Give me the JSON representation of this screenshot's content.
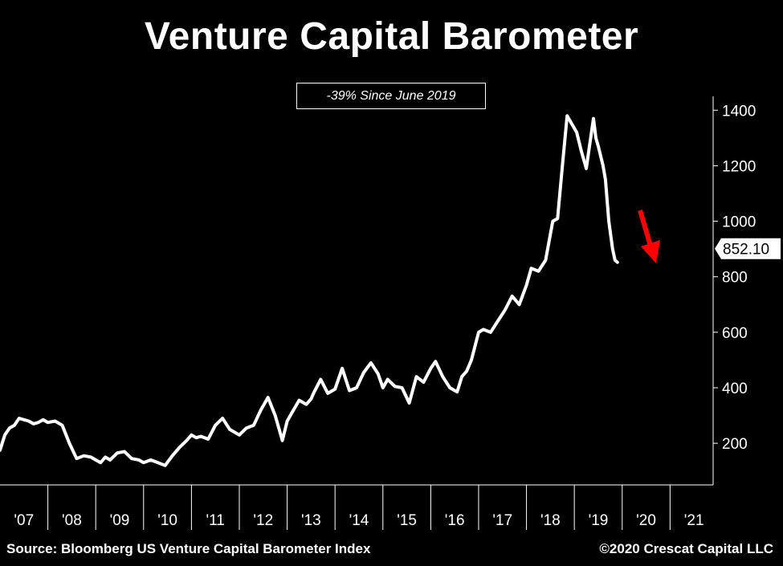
{
  "title": "Venture Capital Barometer",
  "annotation": "-39% Since June 2019",
  "source": "Source: Bloomberg US Venture Capital Barometer Index",
  "copyright": "©2020 Crescat Capital LLC",
  "colors": {
    "background": "#000000",
    "line": "#ffffff",
    "arrow": "#ff0000"
  },
  "chart_data": {
    "type": "line",
    "title": "Venture Capital Barometer",
    "xlabel": "",
    "ylabel": "",
    "ylim": [
      50,
      1450
    ],
    "xlim": [
      2007.0,
      2021.9
    ],
    "yticks": [
      200,
      400,
      600,
      800,
      1000,
      1200,
      1400
    ],
    "x_tick_labels": [
      "'07",
      "'08",
      "'09",
      "'10",
      "'11",
      "'12",
      "'13",
      "'14",
      "'15",
      "'16",
      "'17",
      "'18",
      "'19",
      "'20",
      "'21"
    ],
    "y_axis_position": "right",
    "grid": false,
    "last_value_label": "852.10",
    "series": [
      {
        "x": [
          2007.0,
          2007.1,
          2007.2,
          2007.3,
          2007.4,
          2007.5,
          2007.6,
          2007.7,
          2007.8,
          2007.9,
          2008.0,
          2008.15,
          2008.3,
          2008.45,
          2008.6,
          2008.75,
          2008.9,
          2009.0,
          2009.1,
          2009.2,
          2009.3,
          2009.45,
          2009.6,
          2009.75,
          2009.9,
          2010.0,
          2010.15,
          2010.3,
          2010.45,
          2010.6,
          2010.75,
          2010.9,
          2011.0,
          2011.1,
          2011.2,
          2011.35,
          2011.5,
          2011.65,
          2011.8,
          2012.0,
          2012.15,
          2012.3,
          2012.45,
          2012.6,
          2012.75,
          2012.9,
          2013.0,
          2013.1,
          2013.25,
          2013.4,
          2013.5,
          2013.55,
          2013.7,
          2013.85,
          2014.0,
          2014.15,
          2014.3,
          2014.45,
          2014.6,
          2014.75,
          2014.9,
          2015.0,
          2015.1,
          2015.25,
          2015.4,
          2015.55,
          2015.7,
          2015.85,
          2016.0,
          2016.1,
          2016.25,
          2016.4,
          2016.55,
          2016.65,
          2016.75,
          2016.85,
          2017.0,
          2017.1,
          2017.25,
          2017.4,
          2017.55,
          2017.7,
          2017.85,
          2018.0,
          2018.1,
          2018.25,
          2018.4,
          2018.55,
          2018.65,
          2018.75,
          2018.85,
          2018.95,
          2019.05,
          2019.15,
          2019.25,
          2019.3,
          2019.4,
          2019.45,
          2019.5,
          2019.6,
          2019.65,
          2019.72,
          2019.8,
          2019.85,
          2019.9
        ],
        "values": [
          175,
          230,
          255,
          265,
          290,
          285,
          280,
          270,
          275,
          285,
          275,
          280,
          265,
          200,
          145,
          155,
          150,
          140,
          130,
          150,
          140,
          165,
          170,
          145,
          140,
          130,
          140,
          130,
          120,
          155,
          185,
          210,
          230,
          220,
          225,
          215,
          265,
          290,
          250,
          230,
          255,
          265,
          320,
          365,
          300,
          210,
          280,
          310,
          355,
          340,
          360,
          380,
          430,
          380,
          395,
          470,
          390,
          400,
          455,
          490,
          450,
          400,
          430,
          405,
          400,
          345,
          440,
          420,
          470,
          495,
          440,
          400,
          385,
          440,
          460,
          500,
          600,
          610,
          600,
          640,
          680,
          730,
          700,
          770,
          830,
          820,
          860,
          1000,
          1010,
          1200,
          1380,
          1350,
          1320,
          1250,
          1190,
          1250,
          1370,
          1300,
          1270,
          1200,
          1150,
          1000,
          900,
          860,
          852.1
        ]
      }
    ]
  }
}
